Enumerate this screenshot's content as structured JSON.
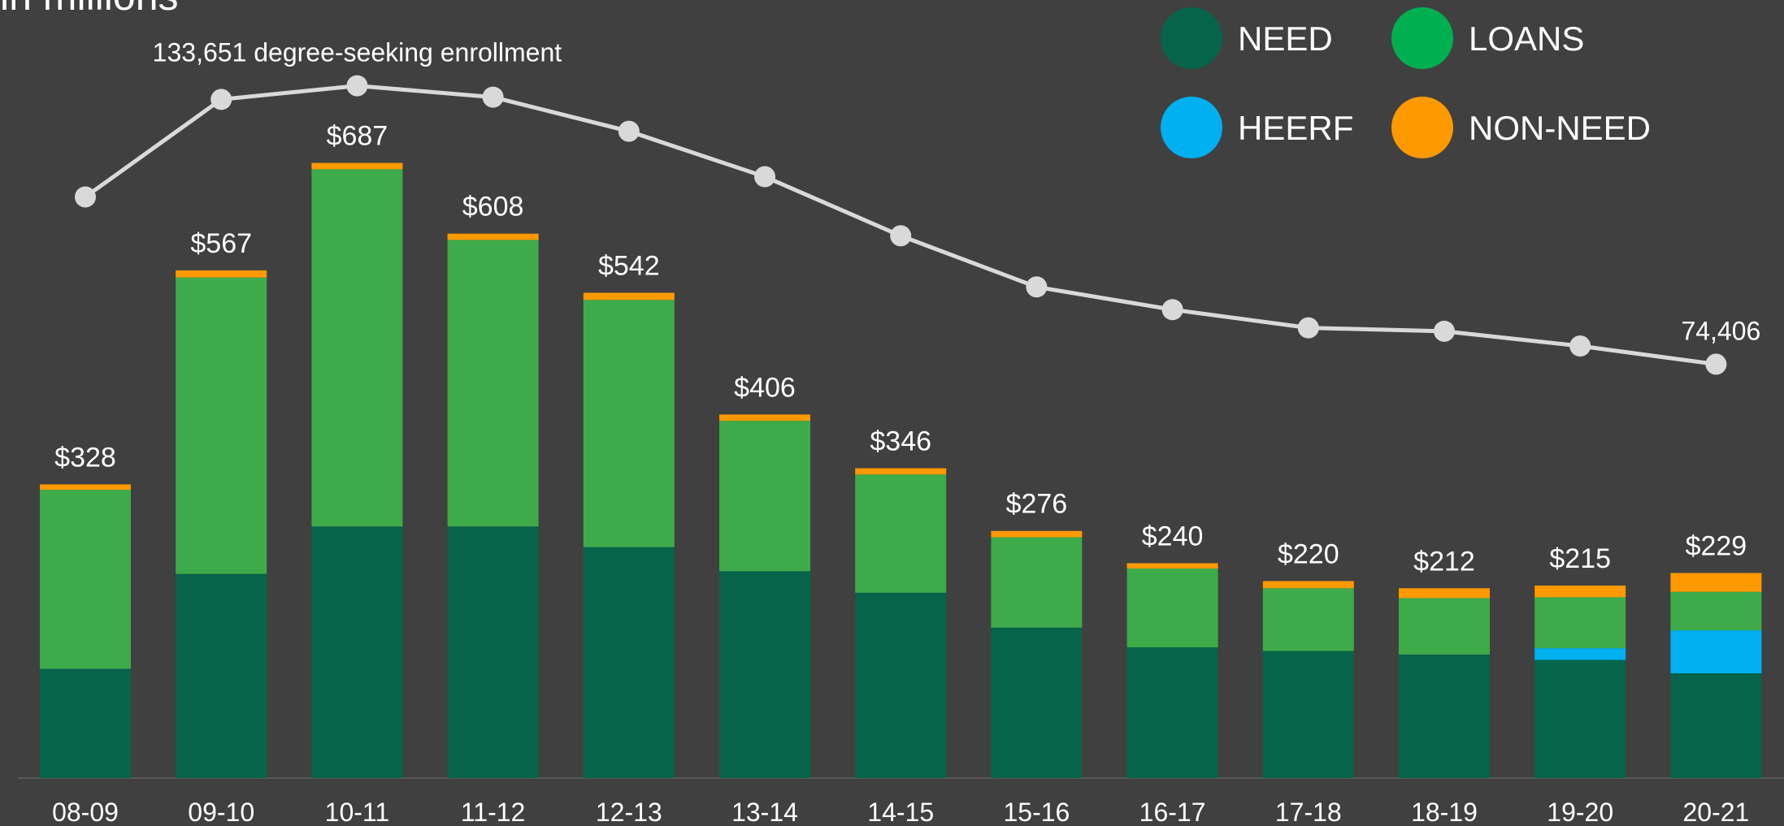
{
  "chart_data": {
    "type": "bar",
    "stacked": true,
    "title": "in millions",
    "categories": [
      "08-09",
      "09-10",
      "10-11",
      "11-12",
      "12-13",
      "13-14",
      "14-15",
      "15-16",
      "16-17",
      "17-18",
      "18-19",
      "19-20",
      "20-21"
    ],
    "ylim": [
      0,
      800
    ],
    "y2lim": [
      0,
      150000
    ],
    "grid": false,
    "series": [
      {
        "name": "NEED",
        "color": "#06644a",
        "legend_color": "#06644a",
        "values": [
          122,
          228,
          281,
          281,
          258,
          231,
          207,
          168,
          146,
          142,
          138,
          132,
          117
        ]
      },
      {
        "name": "HEERF",
        "color": "#00b0f0",
        "legend_color": "#00b0f0",
        "values": [
          0,
          0,
          0,
          0,
          0,
          0,
          0,
          0,
          0,
          0,
          0,
          13,
          48
        ]
      },
      {
        "name": "LOANS",
        "color": "#3dab4a",
        "legend_color": "#00b050",
        "values": [
          200,
          331,
          399,
          320,
          276,
          168,
          132,
          101,
          88,
          70,
          63,
          57,
          43
        ]
      },
      {
        "name": "NON-NEED",
        "color": "#ff9900",
        "legend_color": "#ff9900",
        "values": [
          6,
          8,
          7,
          7,
          8,
          7,
          7,
          7,
          6,
          8,
          11,
          13,
          21
        ]
      }
    ],
    "totals": {
      "values": [
        328,
        567,
        687,
        608,
        542,
        406,
        346,
        276,
        240,
        220,
        212,
        215,
        229
      ],
      "value_labels": [
        "$328",
        "$567",
        "$687",
        "$608",
        "$542",
        "$406",
        "$346",
        "$276",
        "$240",
        "$220",
        "$212",
        "$215",
        "$229"
      ]
    },
    "line_series": {
      "type": "line",
      "axis": "y2",
      "color": "#d9d9d9",
      "values": [
        110000,
        130750,
        133651,
        131233,
        123979,
        114307,
        101733,
        90850,
        86016,
        82148,
        81422,
        78279,
        74406
      ],
      "value_labels": [
        null,
        null,
        "133,651 degree-seeking enrollment",
        null,
        null,
        null,
        null,
        null,
        null,
        null,
        null,
        null,
        "74,406"
      ]
    }
  }
}
